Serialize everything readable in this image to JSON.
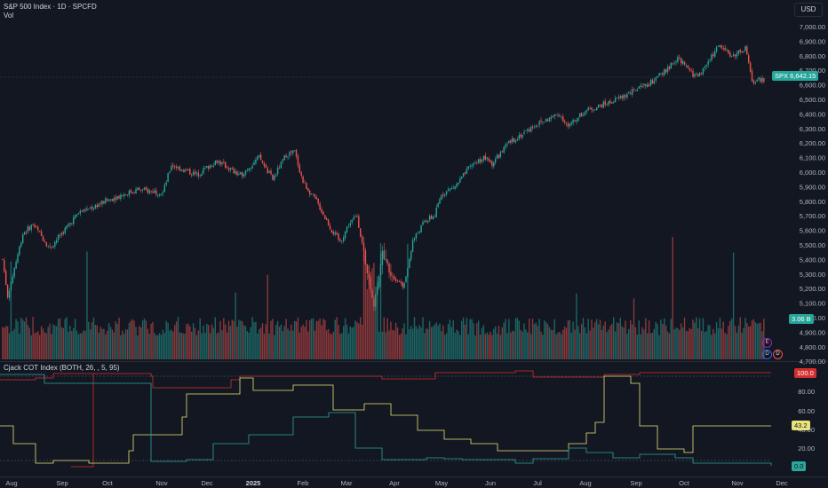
{
  "header": {
    "title": "S&P 500 Index · 1D · SPCFD",
    "volume_label": "Vol",
    "currency": "USD"
  },
  "indicator": {
    "title": "Cjack COT Index (BOTH, 26, , 5, 95)",
    "value_red": "100.0",
    "value_yellow": "43.2",
    "value_teal": "0.0"
  },
  "price_badge": {
    "symbol": "SPX",
    "value": "6,642.15"
  },
  "volume_badge": "3.06 B",
  "price_axis": [
    "7,000.00",
    "6,900.00",
    "6,800.00",
    "6,700.00",
    "6,600.00",
    "6,500.00",
    "6,400.00",
    "6,300.00",
    "6,200.00",
    "6,100.00",
    "6,000.00",
    "5,900.00",
    "5,800.00",
    "5,700.00",
    "5,600.00",
    "5,500.00",
    "5,400.00",
    "5,300.00",
    "5,200.00",
    "5,100.00",
    "5,000.00",
    "4,900.00",
    "4,800.00",
    "4,700.00"
  ],
  "indicator_axis": [
    "80.00",
    "60.00",
    "40.00",
    "20.00"
  ],
  "time_axis": [
    "Aug",
    "Sep",
    "Oct",
    "Nov",
    "Dec",
    "2025",
    "Feb",
    "Mar",
    "Apr",
    "May",
    "Jun",
    "Jul",
    "Aug",
    "Sep",
    "Oct",
    "Nov",
    "Dec"
  ],
  "colors": {
    "up": "#26a69a",
    "down": "#ef5350",
    "cot_red": "#d42f2f",
    "cot_yellow": "#e8e37a",
    "cot_teal": "#2aa79b",
    "background": "#131722"
  },
  "chart_data": {
    "type": "candlestick",
    "ylim": [
      4700,
      7050
    ],
    "anchors": [
      [
        0,
        5400
      ],
      [
        3,
        5150
      ],
      [
        12,
        5580
      ],
      [
        18,
        5640
      ],
      [
        28,
        5480
      ],
      [
        45,
        5720
      ],
      [
        65,
        5820
      ],
      [
        80,
        5880
      ],
      [
        95,
        5860
      ],
      [
        100,
        6050
      ],
      [
        115,
        5980
      ],
      [
        127,
        6080
      ],
      [
        135,
        6020
      ],
      [
        140,
        5970
      ],
      [
        152,
        6100
      ],
      [
        160,
        5950
      ],
      [
        168,
        6120
      ],
      [
        173,
        6140
      ],
      [
        178,
        5930
      ],
      [
        186,
        5800
      ],
      [
        195,
        5600
      ],
      [
        200,
        5520
      ],
      [
        205,
        5640
      ],
      [
        210,
        5700
      ],
      [
        215,
        5380
      ],
      [
        220,
        5080
      ],
      [
        225,
        5450
      ],
      [
        230,
        5300
      ],
      [
        238,
        5220
      ],
      [
        243,
        5530
      ],
      [
        250,
        5660
      ],
      [
        256,
        5700
      ],
      [
        260,
        5850
      ],
      [
        268,
        5900
      ],
      [
        278,
        6050
      ],
      [
        285,
        6100
      ],
      [
        290,
        6060
      ],
      [
        300,
        6200
      ],
      [
        315,
        6320
      ],
      [
        330,
        6400
      ],
      [
        335,
        6310
      ],
      [
        345,
        6420
      ],
      [
        360,
        6480
      ],
      [
        375,
        6560
      ],
      [
        385,
        6620
      ],
      [
        395,
        6720
      ],
      [
        400,
        6780
      ],
      [
        410,
        6660
      ],
      [
        415,
        6700
      ],
      [
        420,
        6800
      ],
      [
        425,
        6870
      ],
      [
        432,
        6800
      ],
      [
        440,
        6850
      ],
      [
        444,
        6620
      ],
      [
        448,
        6640
      ]
    ]
  },
  "events": {
    "earnings": "E",
    "dividend": "D"
  }
}
